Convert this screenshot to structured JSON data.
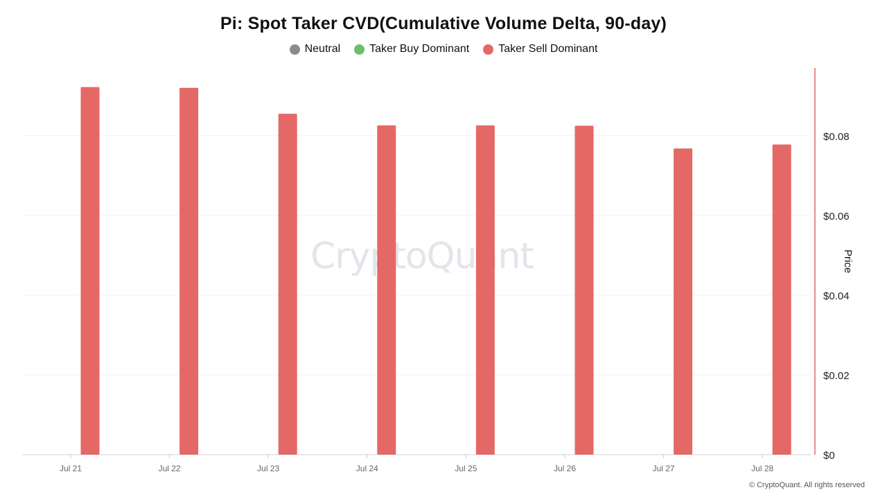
{
  "title": "Pi: Spot Taker CVD(Cumulative Volume Delta, 90-day)",
  "legend": [
    {
      "label": "Neutral",
      "color": "#8c8c90"
    },
    {
      "label": "Taker Buy Dominant",
      "color": "#6cc065"
    },
    {
      "label": "Taker Sell Dominant",
      "color": "#e46866"
    }
  ],
  "watermark": "CryptoQuant",
  "footer": "© CryptoQuant. All rights reserved",
  "chart_data": {
    "type": "bar",
    "categories": [
      "Jul 21",
      "Jul 22",
      "Jul 23",
      "Jul 24",
      "Jul 25",
      "Jul 26",
      "Jul 27",
      "Jul 28"
    ],
    "series": [
      {
        "values": [
          0.0922,
          0.092,
          0.0855,
          0.0826,
          0.0826,
          0.0825,
          0.0768,
          0.0778
        ],
        "color": "#e46866"
      }
    ],
    "ylabel": "Price",
    "ylim": [
      0,
      0.097
    ],
    "yticks": [
      "$0",
      "$0.02",
      "$0.04",
      "$0.06",
      "$0.08"
    ],
    "ytick_values": [
      0,
      0.02,
      0.04,
      0.06,
      0.08
    ],
    "y_axis_position": "right",
    "grid": true
  }
}
